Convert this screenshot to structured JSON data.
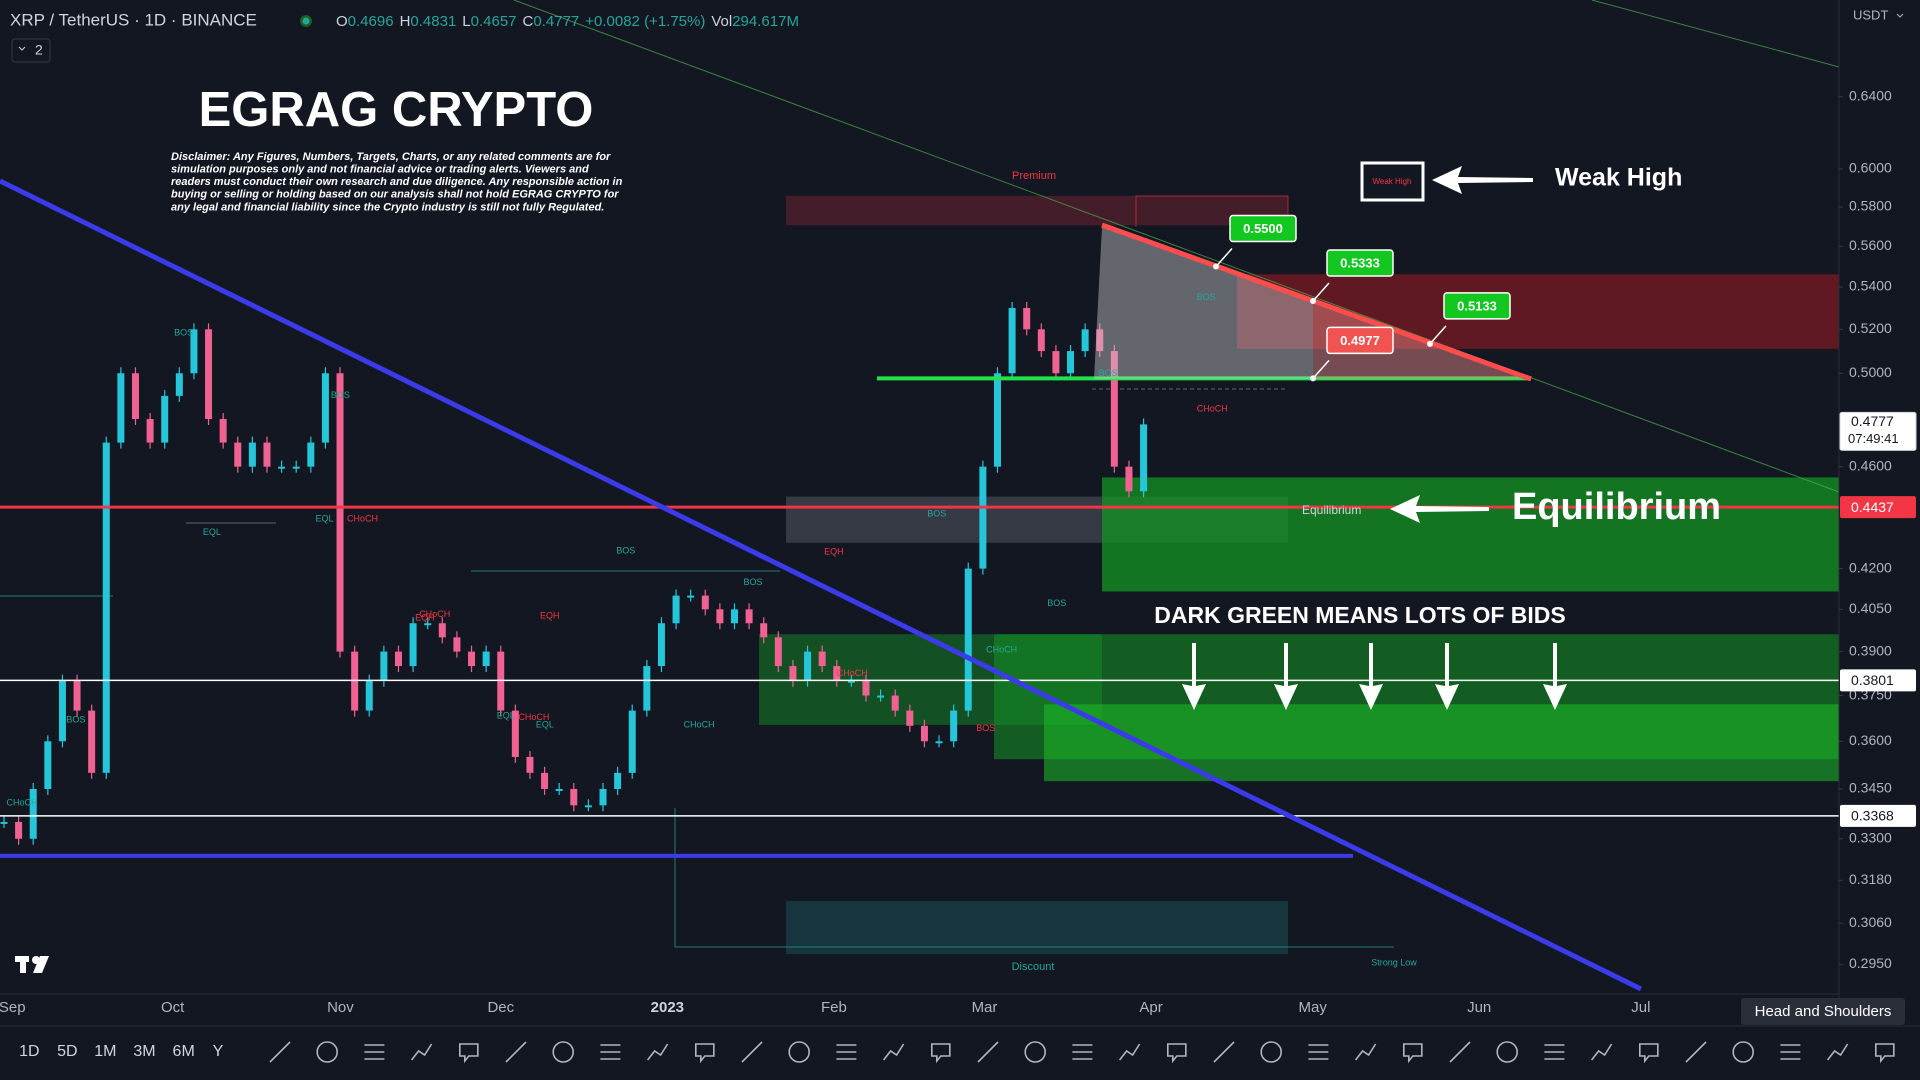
{
  "header": {
    "symbol": "XRP / TetherUS · 1D · BINANCE",
    "ohlc": [
      {
        "label": "O",
        "value": "0.4696"
      },
      {
        "label": "H",
        "value": "0.4831"
      },
      {
        "label": "L",
        "value": "0.4657"
      },
      {
        "label": "C",
        "value": "0.4777"
      }
    ],
    "change": "+0.0082 (+1.75%)",
    "volume_label": "Vol",
    "volume": "294.617M",
    "indicator_count": "2",
    "currency": "USDT"
  },
  "chart_data": {
    "type": "candlestick",
    "values": [
      0.335,
      0.33,
      0.345,
      0.36,
      0.38,
      0.37,
      0.35,
      0.47,
      0.5,
      0.48,
      0.47,
      0.49,
      0.5,
      0.52,
      0.48,
      0.47,
      0.46,
      0.47,
      0.46,
      0.46,
      0.46,
      0.47,
      0.5,
      0.39,
      0.37,
      0.38,
      0.39,
      0.385,
      0.4,
      0.4,
      0.395,
      0.39,
      0.385,
      0.39,
      0.37,
      0.355,
      0.35,
      0.345,
      0.345,
      0.34,
      0.34,
      0.345,
      0.35,
      0.37,
      0.385,
      0.4,
      0.41,
      0.41,
      0.405,
      0.4,
      0.405,
      0.4,
      0.395,
      0.385,
      0.38,
      0.39,
      0.385,
      0.38,
      0.38,
      0.375,
      0.375,
      0.37,
      0.365,
      0.36,
      0.36,
      0.37,
      0.42,
      0.46,
      0.5,
      0.53,
      0.52,
      0.51,
      0.5,
      0.51,
      0.52,
      0.51,
      0.46,
      0.45,
      0.4777
    ],
    "up_color": "#26c6da",
    "down_color": "#f06292",
    "x_labels": [
      "Sep",
      "Oct",
      "Nov",
      "Dec",
      "2023",
      "Feb",
      "Mar",
      "Apr",
      "May",
      "Jun",
      "Jul"
    ],
    "ylim": [
      0.2873,
      0.6977
    ],
    "log_scale": true,
    "yticks": [
      {
        "value": 0.64,
        "label": "0.6400"
      },
      {
        "value": 0.6,
        "label": "0.6000"
      },
      {
        "value": 0.58,
        "label": "0.5800"
      },
      {
        "value": 0.56,
        "label": "0.5600"
      },
      {
        "value": 0.54,
        "label": "0.5400"
      },
      {
        "value": 0.52,
        "label": "0.5200"
      },
      {
        "value": 0.5,
        "label": "0.5000"
      },
      {
        "value": 0.46,
        "label": "0.4600"
      },
      {
        "value": 0.42,
        "label": "0.4200"
      },
      {
        "value": 0.405,
        "label": "0.4050"
      },
      {
        "value": 0.39,
        "label": "0.3900"
      },
      {
        "value": 0.375,
        "label": "0.3750"
      },
      {
        "value": 0.36,
        "label": "0.3600"
      },
      {
        "value": 0.345,
        "label": "0.3450"
      },
      {
        "value": 0.33,
        "label": "0.3300"
      },
      {
        "value": 0.318,
        "label": "0.3180"
      },
      {
        "value": 0.306,
        "label": "0.3060"
      },
      {
        "value": 0.295,
        "label": "0.2950"
      }
    ],
    "current_time": "07:49:41",
    "levels": [
      {
        "value": 0.4437,
        "color": "#f23645",
        "tag": true
      },
      {
        "value": 0.3801,
        "color": "#ffffff",
        "tag": true
      },
      {
        "value": 0.3368,
        "color": "#ffffff",
        "tag": true
      },
      {
        "value": 0.325,
        "color": "#3b3bea",
        "tag": false
      }
    ],
    "zones": [
      {
        "low": 0.5706,
        "high": 0.5858,
        "color": "rgba(242,54,69,0.22)"
      },
      {
        "low": 0.511,
        "high": 0.5462,
        "color": "rgba(160,25,35,0.55)"
      },
      {
        "low": 0.4298,
        "high": 0.4479,
        "color": "rgba(120,123,134,0.35)"
      },
      {
        "low": 0.4115,
        "high": 0.4556,
        "color": "rgba(20,150,35,0.75)"
      },
      {
        "low": 0.3653,
        "high": 0.3961,
        "color": "rgba(20,140,40,0.5)"
      },
      {
        "low": 0.3543,
        "high": 0.3961,
        "color": "rgba(20,140,35,0.6)"
      },
      {
        "low": 0.3474,
        "high": 0.3721,
        "color": "rgba(30,190,40,0.55)"
      },
      {
        "low": 0.2977,
        "high": 0.3122,
        "color": "rgba(38,166,154,0.22)"
      }
    ],
    "targets": [
      {
        "value": 0.55,
        "label": "0.5500",
        "color": "#12c71f"
      },
      {
        "value": 0.5333,
        "color": "#12c71f"
      },
      {
        "value": 0.5133,
        "color": "#12c71f"
      },
      {
        "value": 0.4977,
        "color": "#f05350"
      }
    ],
    "smc_labels": [
      {
        "text": "BOS",
        "color": "#26a69a"
      },
      {
        "text": "BOS",
        "color": "#26a69a"
      },
      {
        "text": "BOS",
        "color": "#26a69a"
      },
      {
        "text": "BOS",
        "color": "#26a69a"
      },
      {
        "text": "BOS",
        "color": "#26a69a"
      },
      {
        "text": "BOS",
        "color": "#26a69a"
      },
      {
        "text": "BOS",
        "color": "#26a69a"
      },
      {
        "text": "BOS",
        "color": "#26a69a"
      },
      {
        "text": "BOS",
        "color": "#26a69a"
      },
      {
        "text": "BOS",
        "color": "#f23645"
      },
      {
        "text": "CHoCH",
        "color": "#26a69a"
      },
      {
        "text": "CHoCH",
        "color": "#f23645"
      },
      {
        "text": "CHoCH",
        "color": "#f23645"
      },
      {
        "text": "CHoCH",
        "color": "#26a69a"
      },
      {
        "text": "CHoCH",
        "color": "#26a69a"
      },
      {
        "text": "CHoCH",
        "color": "#f23645"
      },
      {
        "text": "CHoCH",
        "color": "#f23645"
      },
      {
        "text": "CHoCH",
        "color": "#f23645"
      },
      {
        "text": "EQL",
        "color": "#26a69a"
      },
      {
        "text": "EQL",
        "color": "#26a69a"
      },
      {
        "text": "EQL",
        "color": "#26a69a"
      },
      {
        "text": "EQL",
        "color": "#26a69a"
      },
      {
        "text": "EQH",
        "color": "#f23645"
      },
      {
        "text": "EQH",
        "color": "#f23645"
      },
      {
        "text": "EQH",
        "color": "#f23645"
      }
    ]
  },
  "annotations": {
    "title": "EGRAG CRYPTO",
    "disclaimer": [
      "Disclaimer: Any Figures, Numbers, Targets, Charts, or any related comments are for",
      "simulation purposes only and not financial advice or trading alerts. Viewers and",
      "readers must conduct their own research and due diligence. Any responsible action in",
      "buying or selling or holding based on our analysis shall not hold EGRAG CRYPTO for",
      "any legal and financial liability since the Crypto industry is still not fully Regulated."
    ],
    "premium": "Premium",
    "discount": "Discount",
    "strong_low": "Strong Low",
    "weak_high_tag": "Weak High",
    "weak_high": "Weak High",
    "equilibrium_tag": "Equilibrium",
    "equilibrium": "Equilibrium",
    "bids": "DARK GREEN MEANS LOTS OF BIDS"
  },
  "toolbar": {
    "intervals": [
      "1D",
      "5D",
      "1M",
      "3M",
      "6M",
      "Y"
    ],
    "tooltip": "Head and Shoulders"
  }
}
